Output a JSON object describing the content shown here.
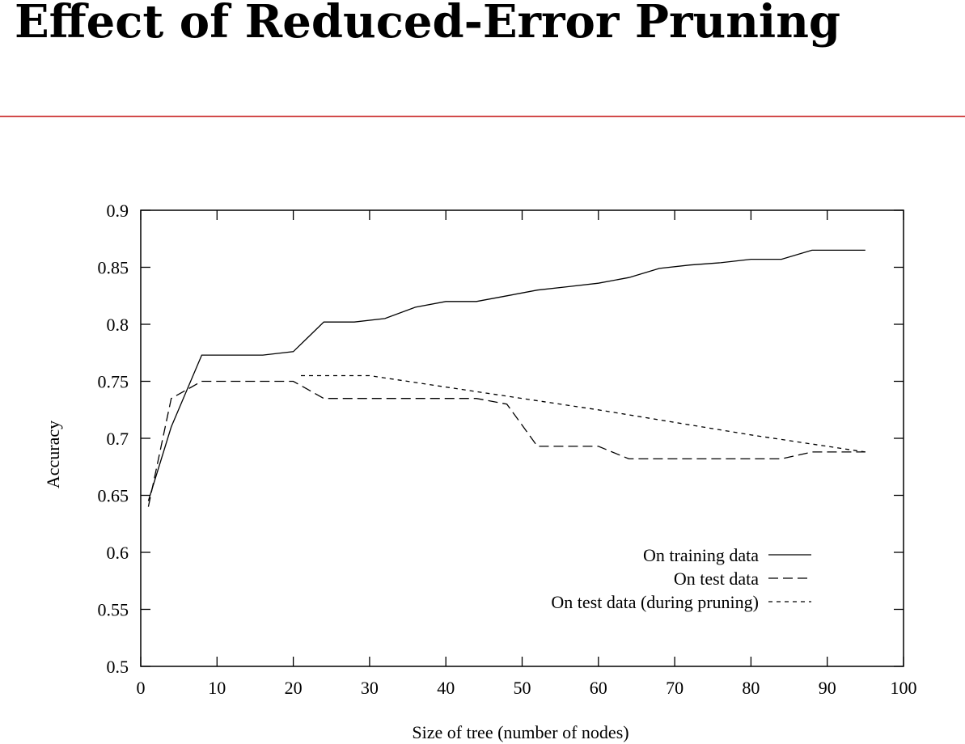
{
  "slide": {
    "title": "Effect of Reduced-Error Pruning",
    "rule_color": "#d24a4a"
  },
  "chart_data": {
    "type": "line",
    "title": "",
    "xlabel": "Size of tree (number of nodes)",
    "ylabel": "Accuracy",
    "xlim": [
      0,
      100
    ],
    "ylim": [
      0.5,
      0.9
    ],
    "xticks": [
      0,
      10,
      20,
      30,
      40,
      50,
      60,
      70,
      80,
      90,
      100
    ],
    "yticks": [
      0.5,
      0.55,
      0.6,
      0.65,
      0.7,
      0.75,
      0.8,
      0.85,
      0.9
    ],
    "grid": false,
    "legend_position": "bottom-right",
    "series": [
      {
        "name": "On training data",
        "style": "solid",
        "points": [
          [
            1,
            0.645
          ],
          [
            4,
            0.71
          ],
          [
            8,
            0.773
          ],
          [
            12,
            0.773
          ],
          [
            16,
            0.773
          ],
          [
            20,
            0.776
          ],
          [
            24,
            0.802
          ],
          [
            28,
            0.802
          ],
          [
            32,
            0.805
          ],
          [
            36,
            0.815
          ],
          [
            40,
            0.82
          ],
          [
            44,
            0.82
          ],
          [
            48,
            0.825
          ],
          [
            52,
            0.83
          ],
          [
            56,
            0.833
          ],
          [
            60,
            0.836
          ],
          [
            64,
            0.841
          ],
          [
            68,
            0.849
          ],
          [
            72,
            0.852
          ],
          [
            76,
            0.854
          ],
          [
            80,
            0.857
          ],
          [
            84,
            0.857
          ],
          [
            88,
            0.865
          ],
          [
            95,
            0.865
          ]
        ]
      },
      {
        "name": "On test data",
        "style": "dashed",
        "points": [
          [
            1,
            0.64
          ],
          [
            4,
            0.735
          ],
          [
            8,
            0.75
          ],
          [
            12,
            0.75
          ],
          [
            16,
            0.75
          ],
          [
            20,
            0.75
          ],
          [
            24,
            0.735
          ],
          [
            28,
            0.735
          ],
          [
            32,
            0.735
          ],
          [
            36,
            0.735
          ],
          [
            40,
            0.735
          ],
          [
            44,
            0.735
          ],
          [
            48,
            0.73
          ],
          [
            52,
            0.693
          ],
          [
            56,
            0.693
          ],
          [
            60,
            0.693
          ],
          [
            64,
            0.682
          ],
          [
            68,
            0.682
          ],
          [
            72,
            0.682
          ],
          [
            76,
            0.682
          ],
          [
            80,
            0.682
          ],
          [
            84,
            0.682
          ],
          [
            88,
            0.688
          ],
          [
            95,
            0.688
          ]
        ]
      },
      {
        "name": "On test data (during pruning)",
        "style": "dotted",
        "points": [
          [
            21,
            0.755
          ],
          [
            30,
            0.755
          ],
          [
            40,
            0.745
          ],
          [
            50,
            0.735
          ],
          [
            60,
            0.725
          ],
          [
            70,
            0.714
          ],
          [
            80,
            0.703
          ],
          [
            90,
            0.693
          ],
          [
            95,
            0.688
          ]
        ]
      }
    ]
  }
}
